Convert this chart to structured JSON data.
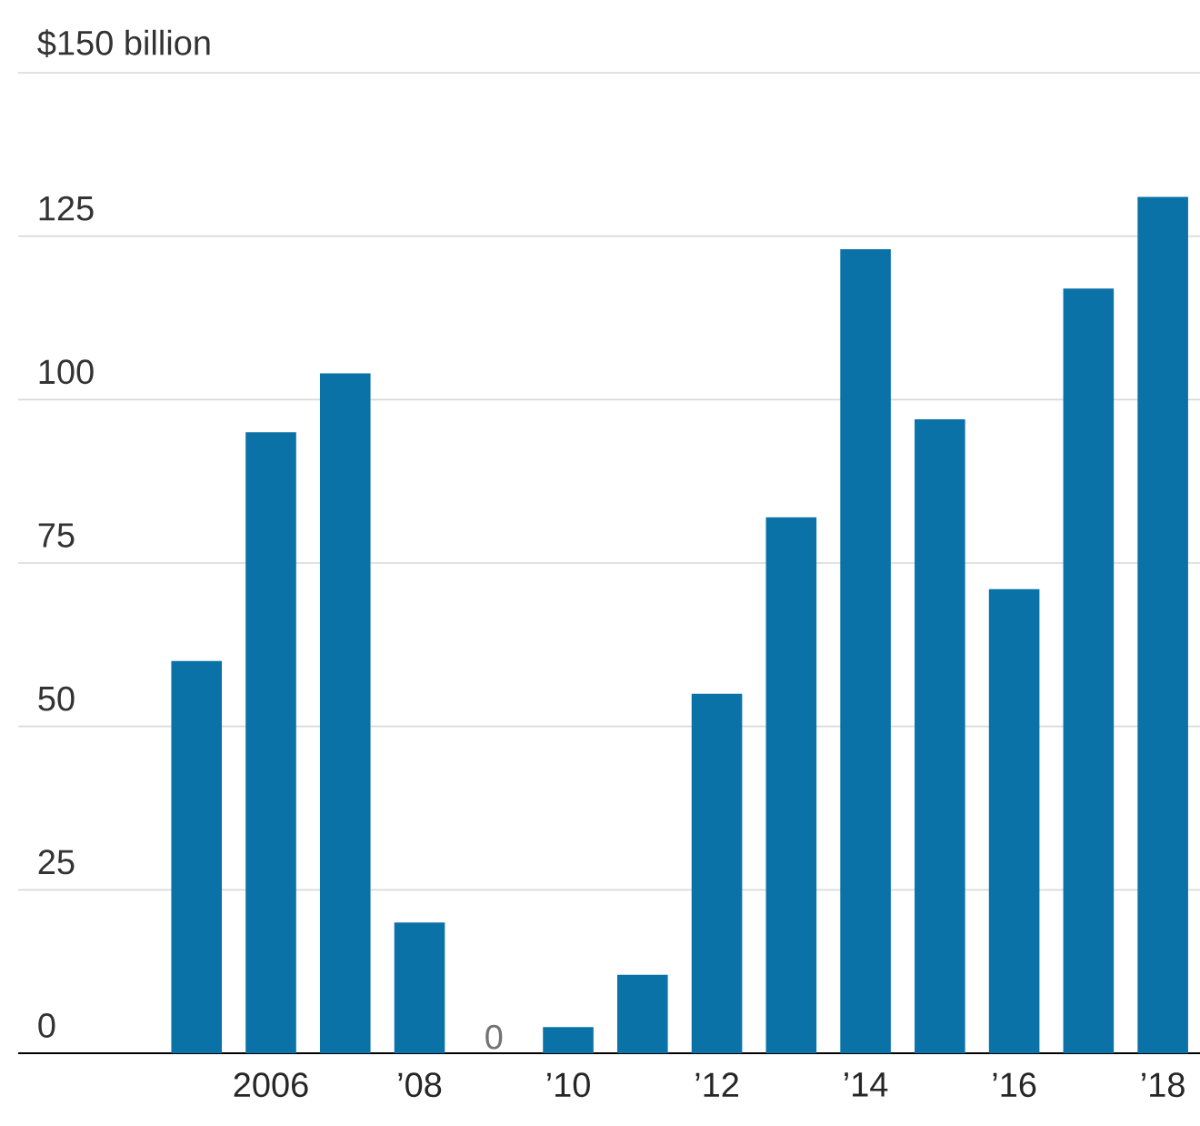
{
  "chart_data": {
    "type": "bar",
    "categories": [
      null,
      "2006",
      null,
      "’08",
      null,
      "’10",
      null,
      "’12",
      null,
      "’14",
      null,
      "’16",
      null,
      "’18"
    ],
    "values": [
      60,
      95,
      104,
      20,
      0,
      4,
      12,
      55,
      82,
      123,
      97,
      71,
      117,
      131
    ],
    "value_labels": [
      null,
      null,
      null,
      null,
      "0",
      null,
      null,
      null,
      null,
      null,
      null,
      null,
      null,
      null
    ],
    "color": "#0b72a8",
    "ylim": [
      0,
      150
    ],
    "yticks": [
      0,
      25,
      50,
      75,
      100,
      125,
      {
        "value": 150,
        "label": "$150 billion"
      }
    ],
    "grid": "y"
  }
}
